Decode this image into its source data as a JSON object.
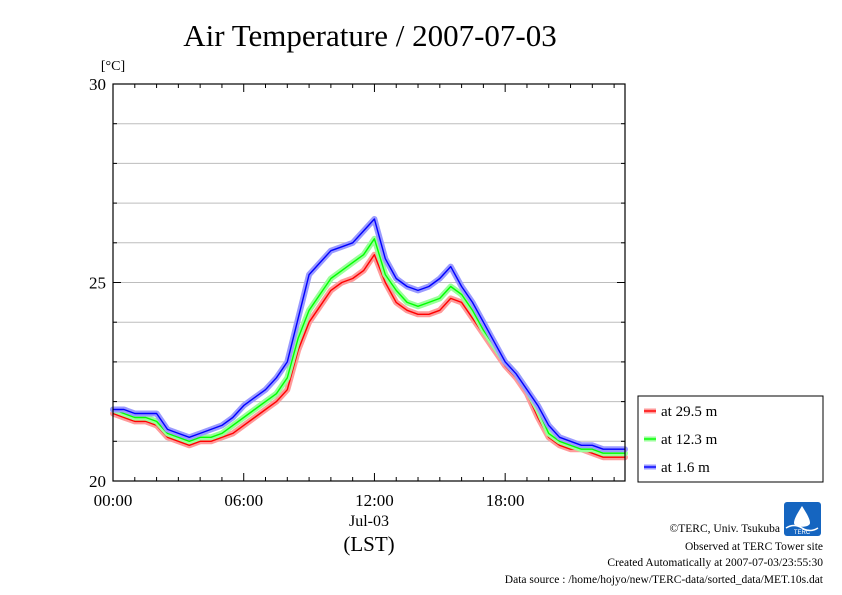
{
  "chart_data": {
    "type": "line",
    "title": "Air Temperature / 2007-07-03",
    "ylabel": "[°C]",
    "xlabel": "(LST)",
    "date_label": "Jul-03",
    "xlim": [
      0,
      23.5
    ],
    "ylim": [
      20,
      30
    ],
    "x_ticks": [
      {
        "value": 0,
        "label": "00:00"
      },
      {
        "value": 6,
        "label": "06:00"
      },
      {
        "value": 12,
        "label": "12:00"
      },
      {
        "value": 18,
        "label": "18:00"
      }
    ],
    "y_ticks": [
      {
        "value": 20,
        "label": "20"
      },
      {
        "value": 25,
        "label": "25"
      },
      {
        "value": 30,
        "label": "30"
      }
    ],
    "grid": true,
    "legend_position": "right-bottom",
    "x": [
      0,
      0.5,
      1,
      1.5,
      2,
      2.5,
      3,
      3.5,
      4,
      4.5,
      5,
      5.5,
      6,
      6.5,
      7,
      7.5,
      8,
      8.5,
      9,
      9.5,
      10,
      10.5,
      11,
      11.5,
      12,
      12.5,
      13,
      13.5,
      14,
      14.5,
      15,
      15.5,
      16,
      16.5,
      17,
      17.5,
      18,
      18.5,
      19,
      19.5,
      20,
      20.5,
      21,
      21.5,
      22,
      22.5,
      23,
      23.5
    ],
    "series": [
      {
        "name": "at 29.5 m",
        "color": "#ff0000",
        "values": [
          21.7,
          21.6,
          21.5,
          21.5,
          21.4,
          21.1,
          21.0,
          20.9,
          21.0,
          21.0,
          21.1,
          21.2,
          21.4,
          21.6,
          21.8,
          22.0,
          22.3,
          23.3,
          24.0,
          24.4,
          24.8,
          25.0,
          25.1,
          25.3,
          25.7,
          25.0,
          24.5,
          24.3,
          24.2,
          24.2,
          24.3,
          24.6,
          24.5,
          24.1,
          23.7,
          23.3,
          22.9,
          22.6,
          22.2,
          21.6,
          21.1,
          20.9,
          20.8,
          20.8,
          20.7,
          20.6,
          20.6,
          20.6
        ]
      },
      {
        "name": "at 12.3 m",
        "color": "#00ff00",
        "values": [
          21.8,
          21.7,
          21.6,
          21.6,
          21.5,
          21.2,
          21.1,
          21.0,
          21.1,
          21.1,
          21.2,
          21.4,
          21.6,
          21.8,
          22.0,
          22.2,
          22.6,
          23.6,
          24.3,
          24.7,
          25.1,
          25.3,
          25.5,
          25.7,
          26.1,
          25.2,
          24.8,
          24.5,
          24.4,
          24.5,
          24.6,
          24.9,
          24.7,
          24.3,
          23.8,
          23.4,
          23.0,
          22.7,
          22.3,
          21.8,
          21.2,
          21.0,
          20.9,
          20.8,
          20.8,
          20.7,
          20.7,
          20.7
        ]
      },
      {
        "name": "at 1.6 m",
        "color": "#0000ff",
        "values": [
          21.8,
          21.8,
          21.7,
          21.7,
          21.7,
          21.3,
          21.2,
          21.1,
          21.2,
          21.3,
          21.4,
          21.6,
          21.9,
          22.1,
          22.3,
          22.6,
          23.0,
          24.1,
          25.2,
          25.5,
          25.8,
          25.9,
          26.0,
          26.3,
          26.6,
          25.6,
          25.1,
          24.9,
          24.8,
          24.9,
          25.1,
          25.4,
          24.9,
          24.5,
          24.0,
          23.5,
          23.0,
          22.7,
          22.3,
          21.9,
          21.4,
          21.1,
          21.0,
          20.9,
          20.9,
          20.8,
          20.8,
          20.8
        ]
      }
    ]
  },
  "footer": {
    "copyright": "©TERC, Univ. Tsukuba",
    "observed": "Observed at TERC Tower site",
    "created": "Created Automatically at 2007-07-03/23:55:30",
    "source": "Data source : /home/hojyo/new/TERC-data/sorted_data/MET.10s.dat",
    "logo_text": "TERC"
  },
  "colors": {
    "halo_red": "#ff9a9a",
    "halo_green": "#9aff9a",
    "halo_blue": "#9a9aff",
    "logo": "#1565c0"
  }
}
